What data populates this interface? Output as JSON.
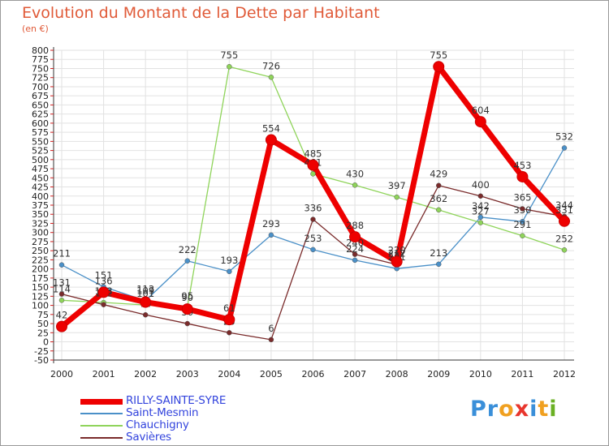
{
  "title": "Evolution du Montant de la Dette par Habitant",
  "unit": "(en €)",
  "brand": {
    "letters": [
      {
        "ch": "P",
        "color": "#3a8fd9"
      },
      {
        "ch": "r",
        "color": "#3a8fd9"
      },
      {
        "ch": "o",
        "color": "#f0a020"
      },
      {
        "ch": "x",
        "color": "#e8362d"
      },
      {
        "ch": "i",
        "color": "#3a8fd9"
      },
      {
        "ch": "t",
        "color": "#f0a020"
      },
      {
        "ch": "i",
        "color": "#6ab023"
      }
    ]
  },
  "chart_data": {
    "type": "line",
    "x": [
      "2000",
      "2001",
      "2002",
      "2003",
      "2004",
      "2005",
      "2006",
      "2007",
      "2008",
      "2009",
      "2010",
      "2011",
      "2012"
    ],
    "ylim": [
      -50,
      800
    ],
    "yticks": [
      -50,
      -25,
      0,
      25,
      50,
      75,
      100,
      125,
      150,
      175,
      200,
      225,
      250,
      275,
      300,
      325,
      350,
      375,
      400,
      425,
      450,
      475,
      500,
      525,
      550,
      575,
      600,
      625,
      650,
      675,
      700,
      725,
      750,
      775,
      800
    ],
    "grid": true,
    "legend_position": "bottom-left",
    "series": [
      {
        "name": "Saint-Mesmin",
        "color": "#4a90c8",
        "width": 1.3,
        "marker": 3,
        "values": [
          211,
          151,
          113,
          222,
          193,
          293,
          253,
          224,
          201,
          213,
          342,
          330,
          532
        ]
      },
      {
        "name": "Chauchigny",
        "color": "#8fd45a",
        "width": 1.3,
        "marker": 3,
        "values": [
          114,
          108,
          101,
          95,
          755,
          726,
          461,
          430,
          397,
          362,
          327,
          291,
          252
        ]
      },
      {
        "name": "Savières",
        "color": "#7a2b2b",
        "width": 1.3,
        "marker": 3,
        "values": [
          131,
          102,
          74,
          50,
          25,
          6,
          336,
          240,
          212,
          429,
          400,
          365,
          344
        ]
      },
      {
        "name": "RILLY-SAINTE-SYRE",
        "color": "#ee0000",
        "width": 7,
        "marker": 6.5,
        "values": [
          42,
          136,
          109,
          90,
          61,
          554,
          485,
          288,
          220,
          755,
          604,
          453,
          331
        ]
      }
    ]
  }
}
